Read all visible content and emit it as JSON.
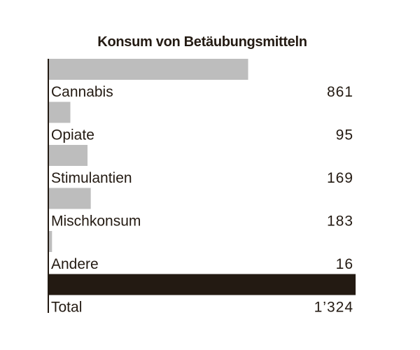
{
  "chart_data": {
    "type": "bar",
    "orientation": "horizontal",
    "title": "Konsum von Betäubungsmitteln",
    "categories": [
      "Cannabis",
      "Opiate",
      "Stimulantien",
      "Mischkonsum",
      "Andere"
    ],
    "values": [
      861,
      95,
      169,
      183,
      16
    ],
    "values_display": [
      "861",
      "95",
      "169",
      "183",
      "16"
    ],
    "total": {
      "label": "Total",
      "value": 1324,
      "display": "1’324"
    },
    "xlim": [
      0,
      1324
    ],
    "grid": false,
    "legend": "none"
  },
  "colors": {
    "bar": "#bdbdbd",
    "total_bar": "#231a12",
    "text": "#231a12",
    "axis": "#231a12"
  }
}
